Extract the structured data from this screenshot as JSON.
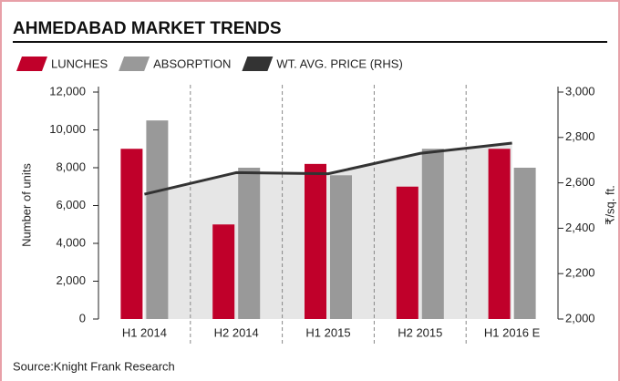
{
  "chart_data": {
    "type": "bar",
    "title": "AHMEDABAD MARKET TRENDS",
    "categories": [
      "H1 2014",
      "H2 2014",
      "H1 2015",
      "H2 2015",
      "H1 2016 E"
    ],
    "series": [
      {
        "name": "LUNCHES",
        "color": "#c0002a",
        "values": [
          9000,
          5000,
          8200,
          7000,
          9000
        ]
      },
      {
        "name": "ABSORPTION",
        "color": "#999999",
        "values": [
          10500,
          8000,
          7600,
          9000,
          8000
        ]
      },
      {
        "name": "WT. AVG. PRICE (RHS)",
        "color": "#333333",
        "axis": "y2",
        "type": "line",
        "values": [
          2550,
          2645,
          2640,
          2730,
          2775
        ]
      }
    ],
    "ylabel": "Number of units",
    "y2label": "₹/sq. ft.",
    "ylim": [
      0,
      12000
    ],
    "yticks": [
      0,
      {
        "value": 2000,
        "label": "2,000"
      },
      {
        "value": 4000,
        "label": "4,000"
      },
      {
        "value": 6000,
        "label": "6,000"
      },
      {
        "value": 8000,
        "label": "8,000"
      },
      {
        "value": 10000,
        "label": "10,000"
      },
      {
        "value": 12000,
        "label": "12,000"
      }
    ],
    "y2lim": [
      2000,
      3000
    ],
    "y2ticks": [
      {
        "value": 2000,
        "label": "2,000"
      },
      {
        "value": 2200,
        "label": "2,200"
      },
      {
        "value": 2400,
        "label": "2,400"
      },
      {
        "value": 2600,
        "label": "2,600"
      },
      {
        "value": 2800,
        "label": "2,800"
      },
      {
        "value": 3000,
        "label": "3,000"
      }
    ],
    "source": "Source:Knight Frank Research"
  }
}
